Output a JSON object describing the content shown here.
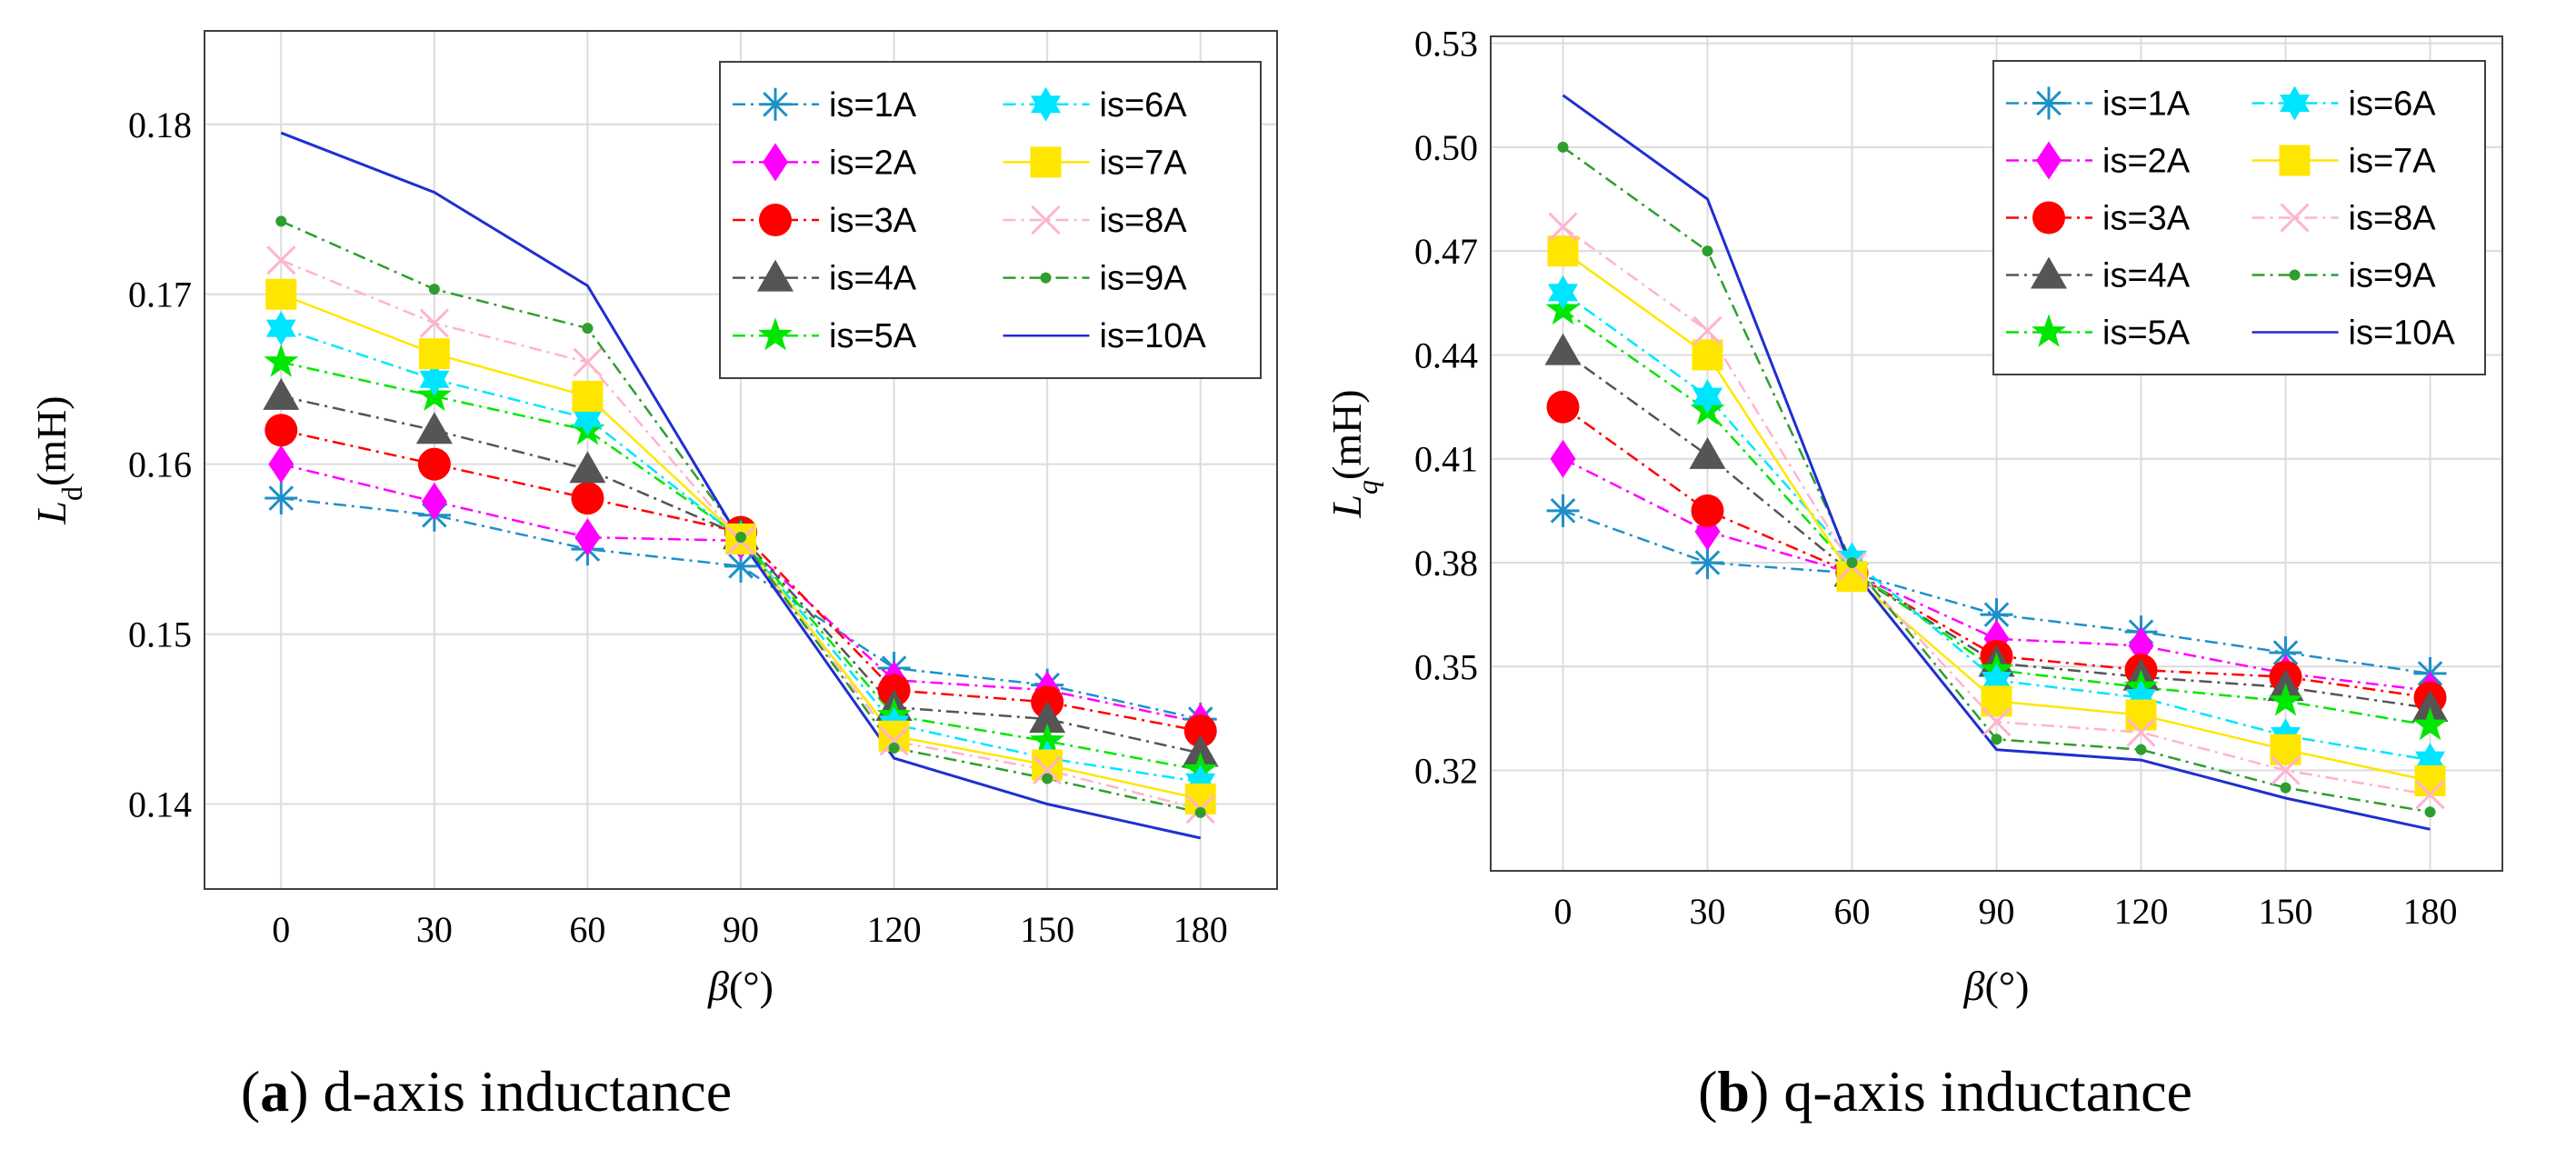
{
  "chart_data": [
    {
      "type": "line",
      "caption_id": "a",
      "caption_text": " d-axis inductance",
      "ylabel_main": "L",
      "ylabel_sub": "d",
      "ylabel_unit": "(mH)",
      "xlabel_main": "β",
      "xlabel_unit": "(°)",
      "x": [
        0,
        30,
        60,
        90,
        120,
        150,
        180
      ],
      "xticks": [
        "0",
        "30",
        "60",
        "90",
        "120",
        "150",
        "180"
      ],
      "xlim": [
        -15,
        195
      ],
      "ylim": [
        0.135,
        0.1855
      ],
      "yticks": [
        0.14,
        0.15,
        0.16,
        0.17,
        0.18
      ],
      "ytick_labels": [
        "0.14",
        "0.15",
        "0.16",
        "0.17",
        "0.18"
      ],
      "grid": true,
      "legend_position": "top-right",
      "series": [
        {
          "name": "is=1A",
          "values": [
            0.158,
            0.157,
            0.155,
            0.154,
            0.148,
            0.147,
            0.145
          ]
        },
        {
          "name": "is=2A",
          "values": [
            0.16,
            0.1578,
            0.1557,
            0.1555,
            0.1473,
            0.1467,
            0.1448
          ]
        },
        {
          "name": "is=3A",
          "values": [
            0.162,
            0.16,
            0.158,
            0.156,
            0.1467,
            0.146,
            0.1443
          ]
        },
        {
          "name": "is=4A",
          "values": [
            0.164,
            0.162,
            0.1597,
            0.1558,
            0.1457,
            0.145,
            0.143
          ]
        },
        {
          "name": "is=5A",
          "values": [
            0.166,
            0.164,
            0.162,
            0.1557,
            0.1452,
            0.1437,
            0.142
          ]
        },
        {
          "name": "is=6A",
          "values": [
            0.168,
            0.165,
            0.1627,
            0.1556,
            0.1447,
            0.1427,
            0.1413
          ]
        },
        {
          "name": "is=7A",
          "values": [
            0.17,
            0.1665,
            0.164,
            0.1556,
            0.144,
            0.1423,
            0.1403
          ]
        },
        {
          "name": "is=8A",
          "values": [
            0.172,
            0.1683,
            0.166,
            0.1555,
            0.1437,
            0.142,
            0.1397
          ]
        },
        {
          "name": "is=9A",
          "values": [
            0.1743,
            0.1703,
            0.168,
            0.1557,
            0.1433,
            0.1415,
            0.1395
          ]
        },
        {
          "name": "is=10A",
          "values": [
            0.1795,
            0.176,
            0.1705,
            0.1555,
            0.1427,
            0.14,
            0.138
          ]
        }
      ]
    },
    {
      "type": "line",
      "caption_id": "b",
      "caption_text": " q-axis inductance",
      "ylabel_main": "L",
      "ylabel_sub": "q",
      "ylabel_unit": "(mH)",
      "xlabel_main": "β",
      "xlabel_unit": "(°)",
      "x": [
        0,
        30,
        60,
        90,
        120,
        150,
        180
      ],
      "xticks": [
        "0",
        "30",
        "60",
        "90",
        "120",
        "150",
        "180"
      ],
      "xlim": [
        -15,
        195
      ],
      "ylim": [
        0.291,
        0.532
      ],
      "yticks": [
        0.32,
        0.35,
        0.38,
        0.41,
        0.44,
        0.47,
        0.5,
        0.53
      ],
      "ytick_labels": [
        "0.32",
        "0.35",
        "0.38",
        "0.41",
        "0.44",
        "0.47",
        "0.50",
        "0.53"
      ],
      "grid": true,
      "legend_position": "top-right",
      "series": [
        {
          "name": "is=1A",
          "values": [
            0.395,
            0.38,
            0.377,
            0.365,
            0.36,
            0.354,
            0.348
          ]
        },
        {
          "name": "is=2A",
          "values": [
            0.41,
            0.389,
            0.377,
            0.358,
            0.356,
            0.348,
            0.343
          ]
        },
        {
          "name": "is=3A",
          "values": [
            0.425,
            0.395,
            0.377,
            0.353,
            0.349,
            0.347,
            0.341
          ]
        },
        {
          "name": "is=4A",
          "values": [
            0.441,
            0.411,
            0.377,
            0.351,
            0.347,
            0.344,
            0.338
          ]
        },
        {
          "name": "is=5A",
          "values": [
            0.453,
            0.424,
            0.378,
            0.349,
            0.344,
            0.34,
            0.333
          ]
        },
        {
          "name": "is=6A",
          "values": [
            0.458,
            0.428,
            0.381,
            0.346,
            0.341,
            0.33,
            0.323
          ]
        },
        {
          "name": "is=7A",
          "values": [
            0.47,
            0.44,
            0.376,
            0.34,
            0.336,
            0.326,
            0.317
          ]
        },
        {
          "name": "is=8A",
          "values": [
            0.477,
            0.447,
            0.379,
            0.334,
            0.331,
            0.32,
            0.313
          ]
        },
        {
          "name": "is=9A",
          "values": [
            0.5,
            0.47,
            0.38,
            0.329,
            0.326,
            0.315,
            0.308
          ]
        },
        {
          "name": "is=10A",
          "values": [
            0.515,
            0.485,
            0.378,
            0.326,
            0.323,
            0.312,
            0.303
          ]
        }
      ]
    }
  ],
  "styles": [
    {
      "color": "#1e90c8",
      "marker": "asterisk"
    },
    {
      "color": "#ff00ff",
      "marker": "diamond"
    },
    {
      "color": "#ff0000",
      "marker": "circle"
    },
    {
      "color": "#555555",
      "marker": "triangle"
    },
    {
      "color": "#00e600",
      "marker": "star5"
    },
    {
      "color": "#00e5ff",
      "marker": "hexagram"
    },
    {
      "color": "#ffe600",
      "marker": "square"
    },
    {
      "color": "#ffb3cf",
      "marker": "cross"
    },
    {
      "color": "#2e9e2e",
      "marker": "dot"
    },
    {
      "color": "#1f2fd0",
      "marker": "none"
    }
  ]
}
